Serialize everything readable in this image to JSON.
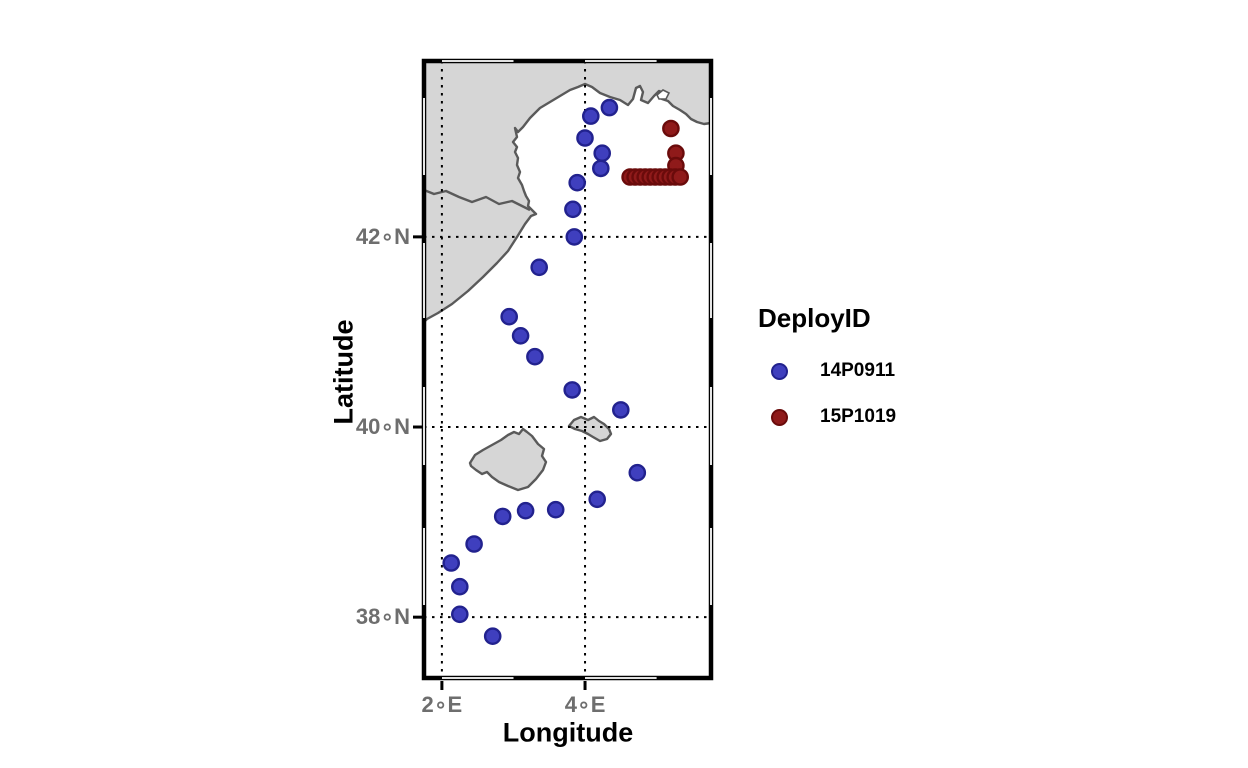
{
  "chart_data": {
    "type": "scatter",
    "subtype": "map-scatter",
    "title": "",
    "xlabel": "Longitude",
    "ylabel": "Latitude",
    "grid": "dashed-black",
    "legend": {
      "title": "DeployID",
      "position": "right"
    },
    "xlim": [
      1.75,
      5.76
    ],
    "ylim": [
      37.36,
      43.85
    ],
    "x_ticks": [
      {
        "value": 2,
        "label": "2∘E"
      },
      {
        "value": 4,
        "label": "4∘E"
      }
    ],
    "y_ticks": [
      {
        "value": 38,
        "label": "38∘N"
      },
      {
        "value": 40,
        "label": "40∘N"
      },
      {
        "value": 42,
        "label": "42∘N"
      }
    ],
    "land_color": "#d6d6d6",
    "coast_color": "#5a5a5a",
    "series": [
      {
        "name": "14P0911",
        "marker_color": "#3f3fbe",
        "marker_stroke": "#22228e",
        "points": [
          [
            4.34,
            43.36
          ],
          [
            4.08,
            43.27
          ],
          [
            4.0,
            43.04
          ],
          [
            4.24,
            42.88
          ],
          [
            4.22,
            42.72
          ],
          [
            3.89,
            42.57
          ],
          [
            3.83,
            42.29
          ],
          [
            3.85,
            42.0
          ],
          [
            3.36,
            41.68
          ],
          [
            2.94,
            41.16
          ],
          [
            3.1,
            40.96
          ],
          [
            3.3,
            40.74
          ],
          [
            3.82,
            40.39
          ],
          [
            4.5,
            40.18
          ],
          [
            4.73,
            39.52
          ],
          [
            4.17,
            39.24
          ],
          [
            3.59,
            39.13
          ],
          [
            3.17,
            39.12
          ],
          [
            2.85,
            39.06
          ],
          [
            2.45,
            38.77
          ],
          [
            2.13,
            38.57
          ],
          [
            2.25,
            38.32
          ],
          [
            2.25,
            38.03
          ],
          [
            2.71,
            37.8
          ]
        ]
      },
      {
        "name": "15P1019",
        "marker_color": "#8f1a1a",
        "marker_stroke": "#6a0b0b",
        "points": [
          [
            5.2,
            43.14
          ],
          [
            5.27,
            42.88
          ],
          [
            5.27,
            42.75
          ],
          [
            4.63,
            42.63
          ],
          [
            4.7,
            42.63
          ],
          [
            4.77,
            42.63
          ],
          [
            4.84,
            42.63
          ],
          [
            4.91,
            42.63
          ],
          [
            4.98,
            42.63
          ],
          [
            5.05,
            42.63
          ],
          [
            5.12,
            42.63
          ],
          [
            5.19,
            42.63
          ],
          [
            5.26,
            42.63
          ],
          [
            5.33,
            42.63
          ]
        ]
      }
    ]
  }
}
